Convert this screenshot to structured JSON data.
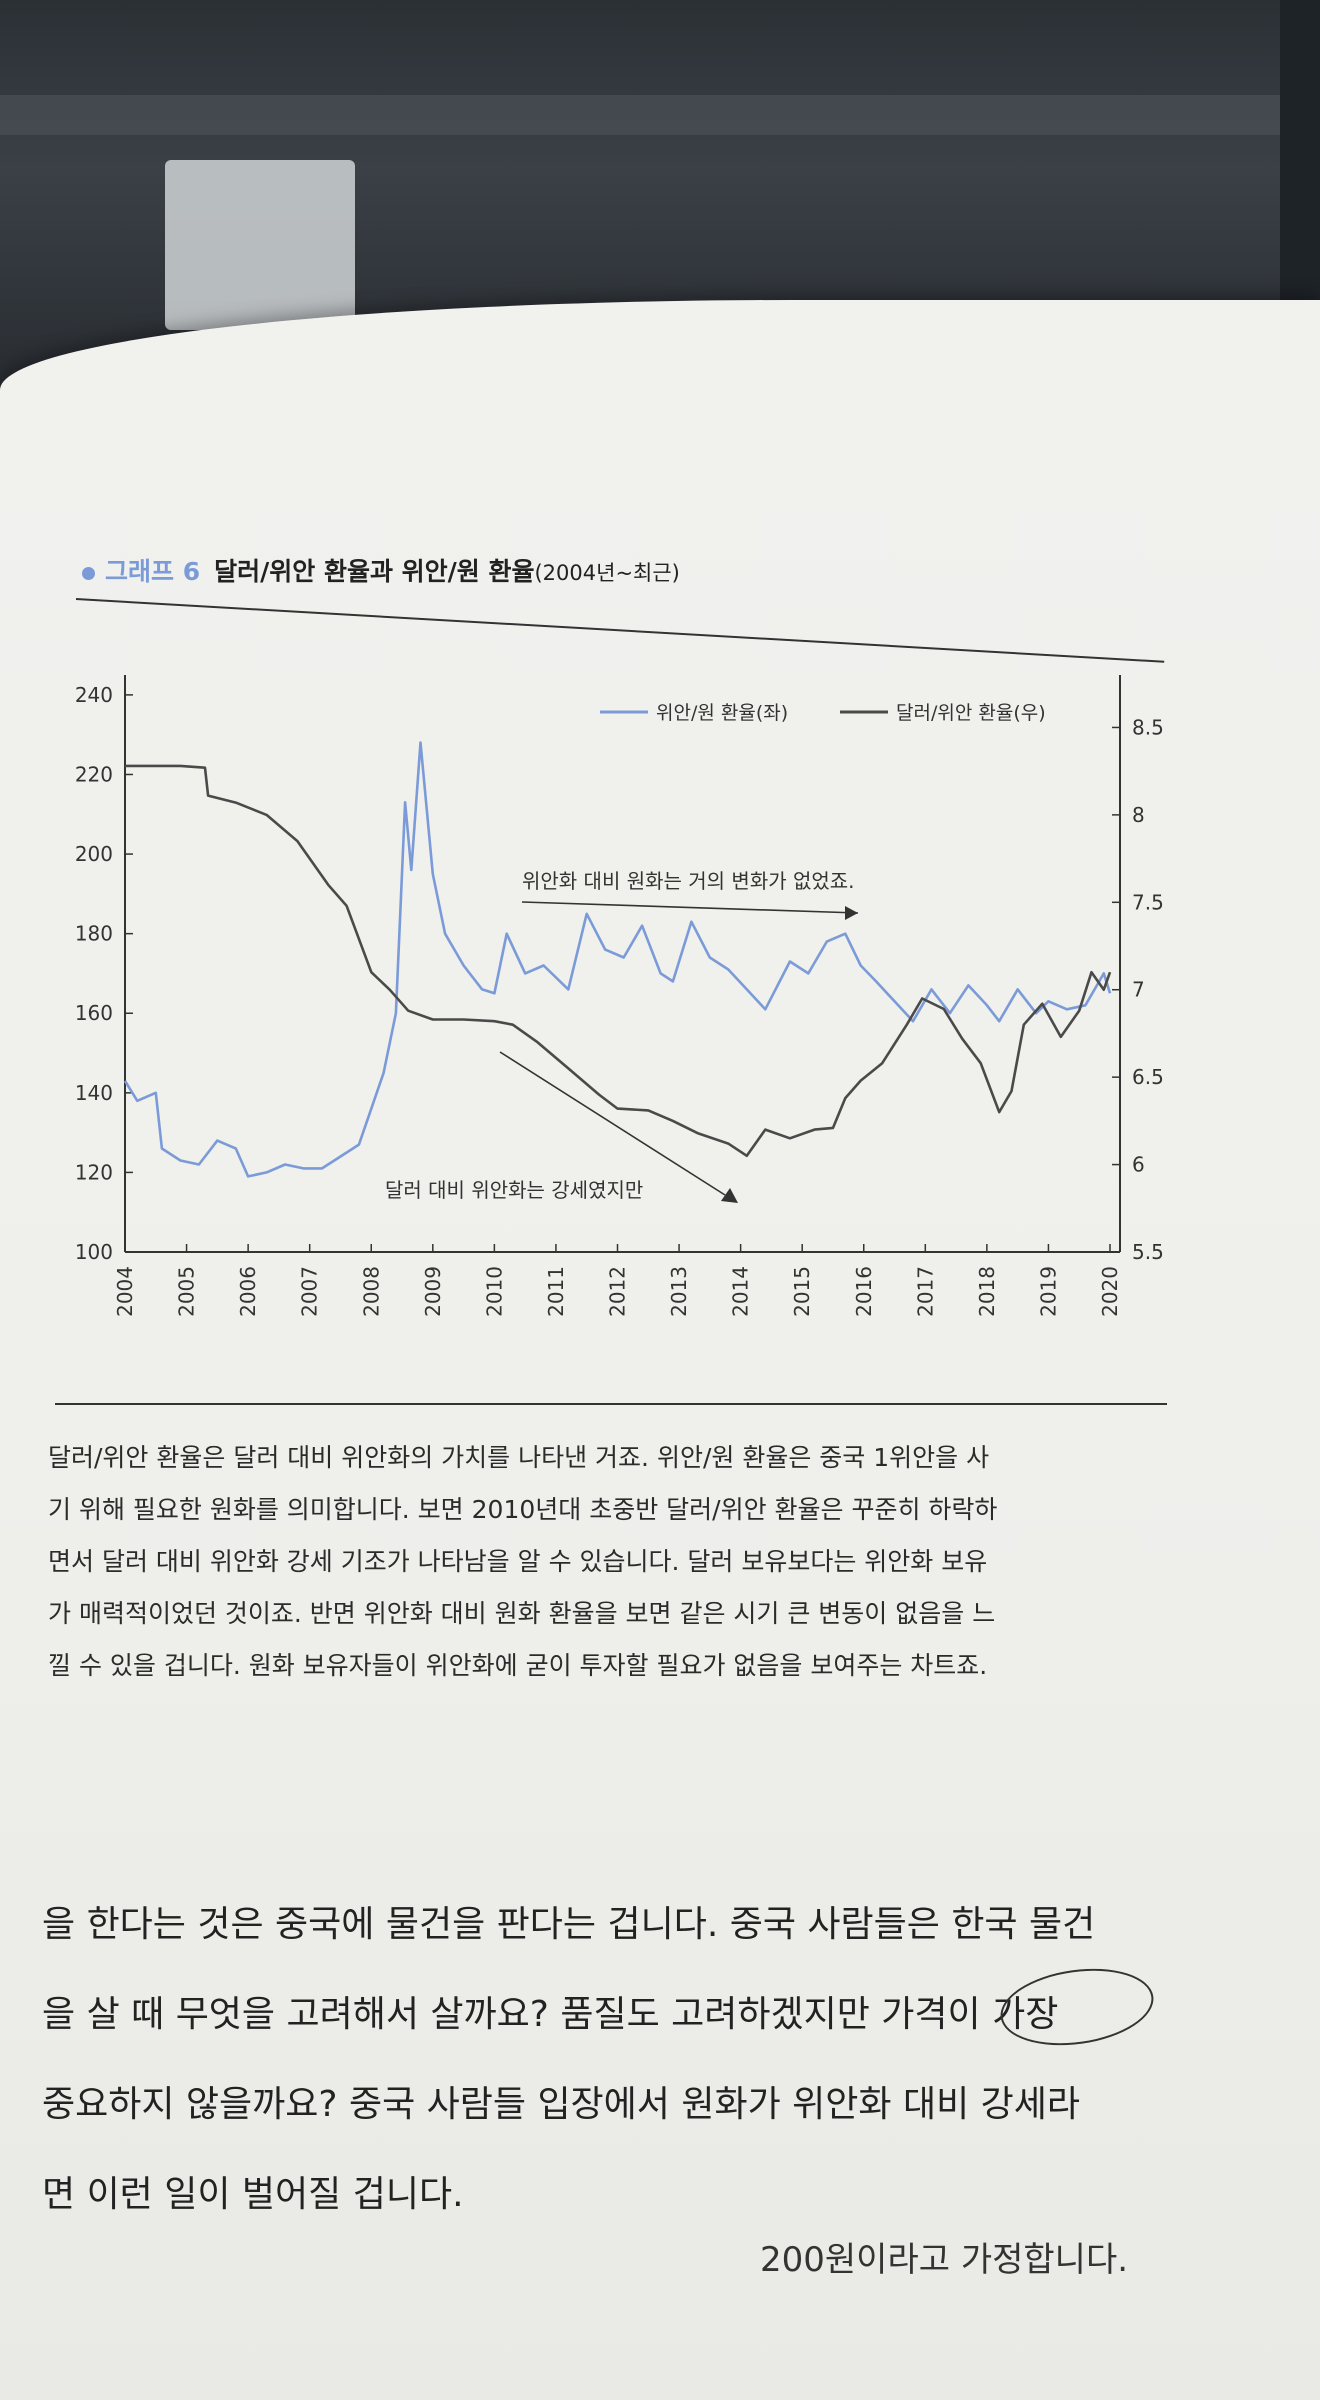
{
  "figure": {
    "label": "그래프 6",
    "title": "달러/위안 환율과 위안/원 환율",
    "subtitle": "(2004년~최근)"
  },
  "chart_data": {
    "type": "line",
    "x": [
      "2004",
      "2005",
      "2006",
      "2007",
      "2008",
      "2009",
      "2010",
      "2011",
      "2012",
      "2013",
      "2014",
      "2015",
      "2016",
      "2017",
      "2018",
      "2019",
      "2020"
    ],
    "y_left": {
      "ticks": [
        "100",
        "120",
        "140",
        "160",
        "180",
        "200",
        "220",
        "240"
      ],
      "ylim": [
        100,
        245
      ]
    },
    "y_right": {
      "ticks": [
        "5.5",
        "6",
        "6.5",
        "7",
        "7.5",
        "8",
        "8.5"
      ],
      "ylim": [
        5.5,
        8.8
      ]
    },
    "series": [
      {
        "name": "위안/원 환율(좌)",
        "axis": "left",
        "color": "#7b9bd8",
        "points": [
          [
            2004.0,
            143
          ],
          [
            2004.2,
            138
          ],
          [
            2004.5,
            140
          ],
          [
            2004.6,
            126
          ],
          [
            2004.9,
            123
          ],
          [
            2005.2,
            122
          ],
          [
            2005.5,
            128
          ],
          [
            2005.8,
            126
          ],
          [
            2006.0,
            119
          ],
          [
            2006.3,
            120
          ],
          [
            2006.6,
            122
          ],
          [
            2006.9,
            121
          ],
          [
            2007.2,
            121
          ],
          [
            2007.5,
            124
          ],
          [
            2007.8,
            127
          ],
          [
            2008.0,
            136
          ],
          [
            2008.2,
            145
          ],
          [
            2008.4,
            160
          ],
          [
            2008.55,
            213
          ],
          [
            2008.65,
            196
          ],
          [
            2008.8,
            228
          ],
          [
            2009.0,
            195
          ],
          [
            2009.2,
            180
          ],
          [
            2009.5,
            172
          ],
          [
            2009.8,
            166
          ],
          [
            2010.0,
            165
          ],
          [
            2010.2,
            180
          ],
          [
            2010.5,
            170
          ],
          [
            2010.8,
            172
          ],
          [
            2011.2,
            166
          ],
          [
            2011.5,
            185
          ],
          [
            2011.8,
            176
          ],
          [
            2012.1,
            174
          ],
          [
            2012.4,
            182
          ],
          [
            2012.7,
            170
          ],
          [
            2012.9,
            168
          ],
          [
            2013.2,
            183
          ],
          [
            2013.5,
            174
          ],
          [
            2013.8,
            171
          ],
          [
            2014.1,
            166
          ],
          [
            2014.4,
            161
          ],
          [
            2014.8,
            173
          ],
          [
            2015.1,
            170
          ],
          [
            2015.4,
            178
          ],
          [
            2015.7,
            180
          ],
          [
            2015.95,
            172
          ],
          [
            2016.2,
            168
          ],
          [
            2016.5,
            163
          ],
          [
            2016.8,
            158
          ],
          [
            2017.1,
            166
          ],
          [
            2017.4,
            160
          ],
          [
            2017.7,
            167
          ],
          [
            2018.0,
            162
          ],
          [
            2018.2,
            158
          ],
          [
            2018.5,
            166
          ],
          [
            2018.8,
            160
          ],
          [
            2019.0,
            163
          ],
          [
            2019.3,
            161
          ],
          [
            2019.6,
            162
          ],
          [
            2019.9,
            170
          ],
          [
            2020.0,
            165
          ]
        ]
      },
      {
        "name": "달러/위안 환율(우)",
        "axis": "right",
        "color": "#4a4a4a",
        "points": [
          [
            2004.0,
            8.28
          ],
          [
            2004.9,
            8.28
          ],
          [
            2005.3,
            8.27
          ],
          [
            2005.35,
            8.11
          ],
          [
            2005.8,
            8.07
          ],
          [
            2006.3,
            8.0
          ],
          [
            2006.8,
            7.85
          ],
          [
            2007.3,
            7.6
          ],
          [
            2007.6,
            7.48
          ],
          [
            2008.0,
            7.1
          ],
          [
            2008.3,
            7.0
          ],
          [
            2008.6,
            6.88
          ],
          [
            2009.0,
            6.83
          ],
          [
            2009.5,
            6.83
          ],
          [
            2010.0,
            6.82
          ],
          [
            2010.3,
            6.8
          ],
          [
            2010.7,
            6.7
          ],
          [
            2011.2,
            6.55
          ],
          [
            2011.7,
            6.4
          ],
          [
            2012.0,
            6.32
          ],
          [
            2012.5,
            6.31
          ],
          [
            2012.9,
            6.25
          ],
          [
            2013.3,
            6.18
          ],
          [
            2013.8,
            6.12
          ],
          [
            2014.1,
            6.05
          ],
          [
            2014.4,
            6.2
          ],
          [
            2014.8,
            6.15
          ],
          [
            2015.2,
            6.2
          ],
          [
            2015.5,
            6.21
          ],
          [
            2015.7,
            6.38
          ],
          [
            2015.95,
            6.48
          ],
          [
            2016.3,
            6.58
          ],
          [
            2016.7,
            6.8
          ],
          [
            2016.95,
            6.95
          ],
          [
            2017.3,
            6.89
          ],
          [
            2017.6,
            6.72
          ],
          [
            2017.9,
            6.58
          ],
          [
            2018.2,
            6.3
          ],
          [
            2018.4,
            6.42
          ],
          [
            2018.6,
            6.8
          ],
          [
            2018.9,
            6.92
          ],
          [
            2019.2,
            6.73
          ],
          [
            2019.5,
            6.88
          ],
          [
            2019.7,
            7.1
          ],
          [
            2019.9,
            7.0
          ],
          [
            2020.0,
            7.1
          ]
        ]
      }
    ],
    "annotations": [
      {
        "text": "위안화 대비 원화는 거의 변화가 없었죠."
      },
      {
        "text": "달러 대비 위안화는 강세였지만"
      }
    ],
    "legend_position": "top-right",
    "grid": false
  },
  "explanation": [
    "달러/위안 환율은 달러 대비 위안화의 가치를 나타낸 거죠. 위안/원 환율은 중국 1위안을 사",
    "기 위해 필요한 원화를 의미합니다. 보면 2010년대 초중반 달러/위안 환율은 꾸준히 하락하",
    "면서 달러 대비 위안화 강세 기조가 나타남을 알 수 있습니다. 달러 보유보다는 위안화 보유",
    "가 매력적이었던 것이죠. 반면 위안화 대비 원화 환율을 보면 같은 시기 큰 변동이 없음을 느",
    "낄 수 있을 겁니다. 원화 보유자들이 위안화에 굳이 투자할 필요가 없음을 보여주는 차트죠."
  ],
  "body": [
    "을 한다는 것은 중국에 물건을 판다는 겁니다. 중국 사람들은 한국 물건",
    "을 살 때 무엇을 고려해서 살까요? 품질도 고려하겠지만 가격이 가장",
    "중요하지 않을까요? 중국 사람들 입장에서 원화가 위안화 대비 강세라",
    "면 이런 일이 벌어질 겁니다."
  ],
  "cut_line": "200원이라고 가정합니다."
}
